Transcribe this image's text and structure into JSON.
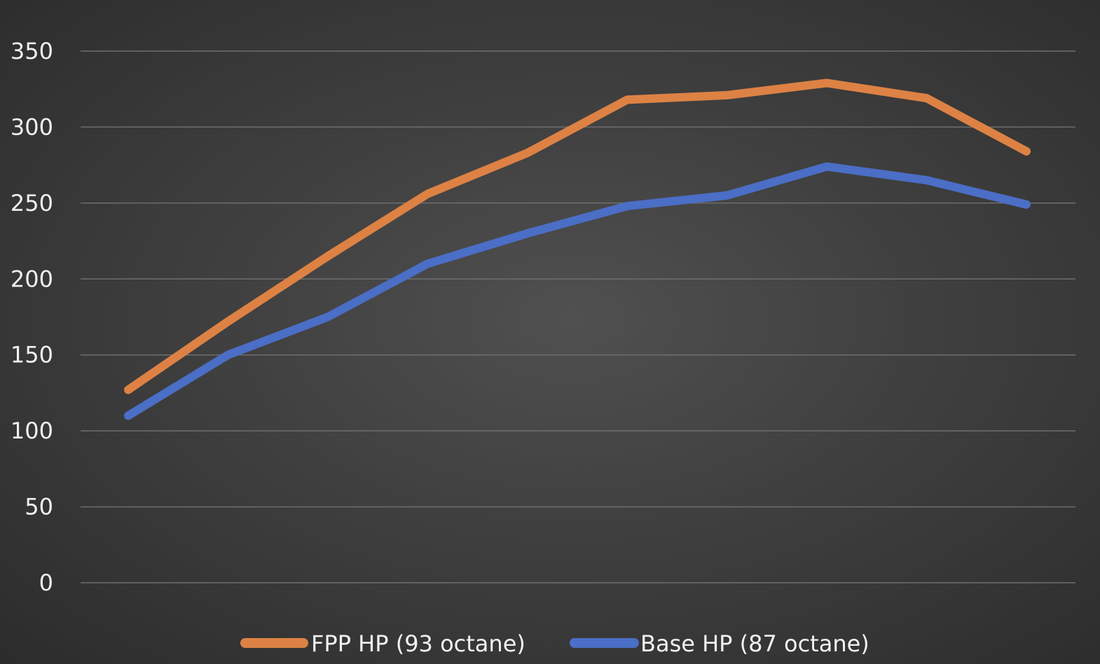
{
  "chart_data": {
    "type": "line",
    "title": "",
    "xlabel": "",
    "ylabel": "",
    "ylim": [
      0,
      350
    ],
    "yticks": [
      0,
      50,
      100,
      150,
      200,
      250,
      300,
      350
    ],
    "grid": true,
    "legend_position": "bottom",
    "series": [
      {
        "name": "FPP HP (93 octane)",
        "color": "#dd8244",
        "values": [
          127,
          172,
          215,
          256,
          283,
          318,
          321,
          329,
          319,
          284
        ]
      },
      {
        "name": "Base HP (87 octane)",
        "color": "#4b6ec6",
        "values": [
          110,
          150,
          175,
          210,
          230,
          248,
          255,
          274,
          265,
          249
        ]
      }
    ]
  }
}
